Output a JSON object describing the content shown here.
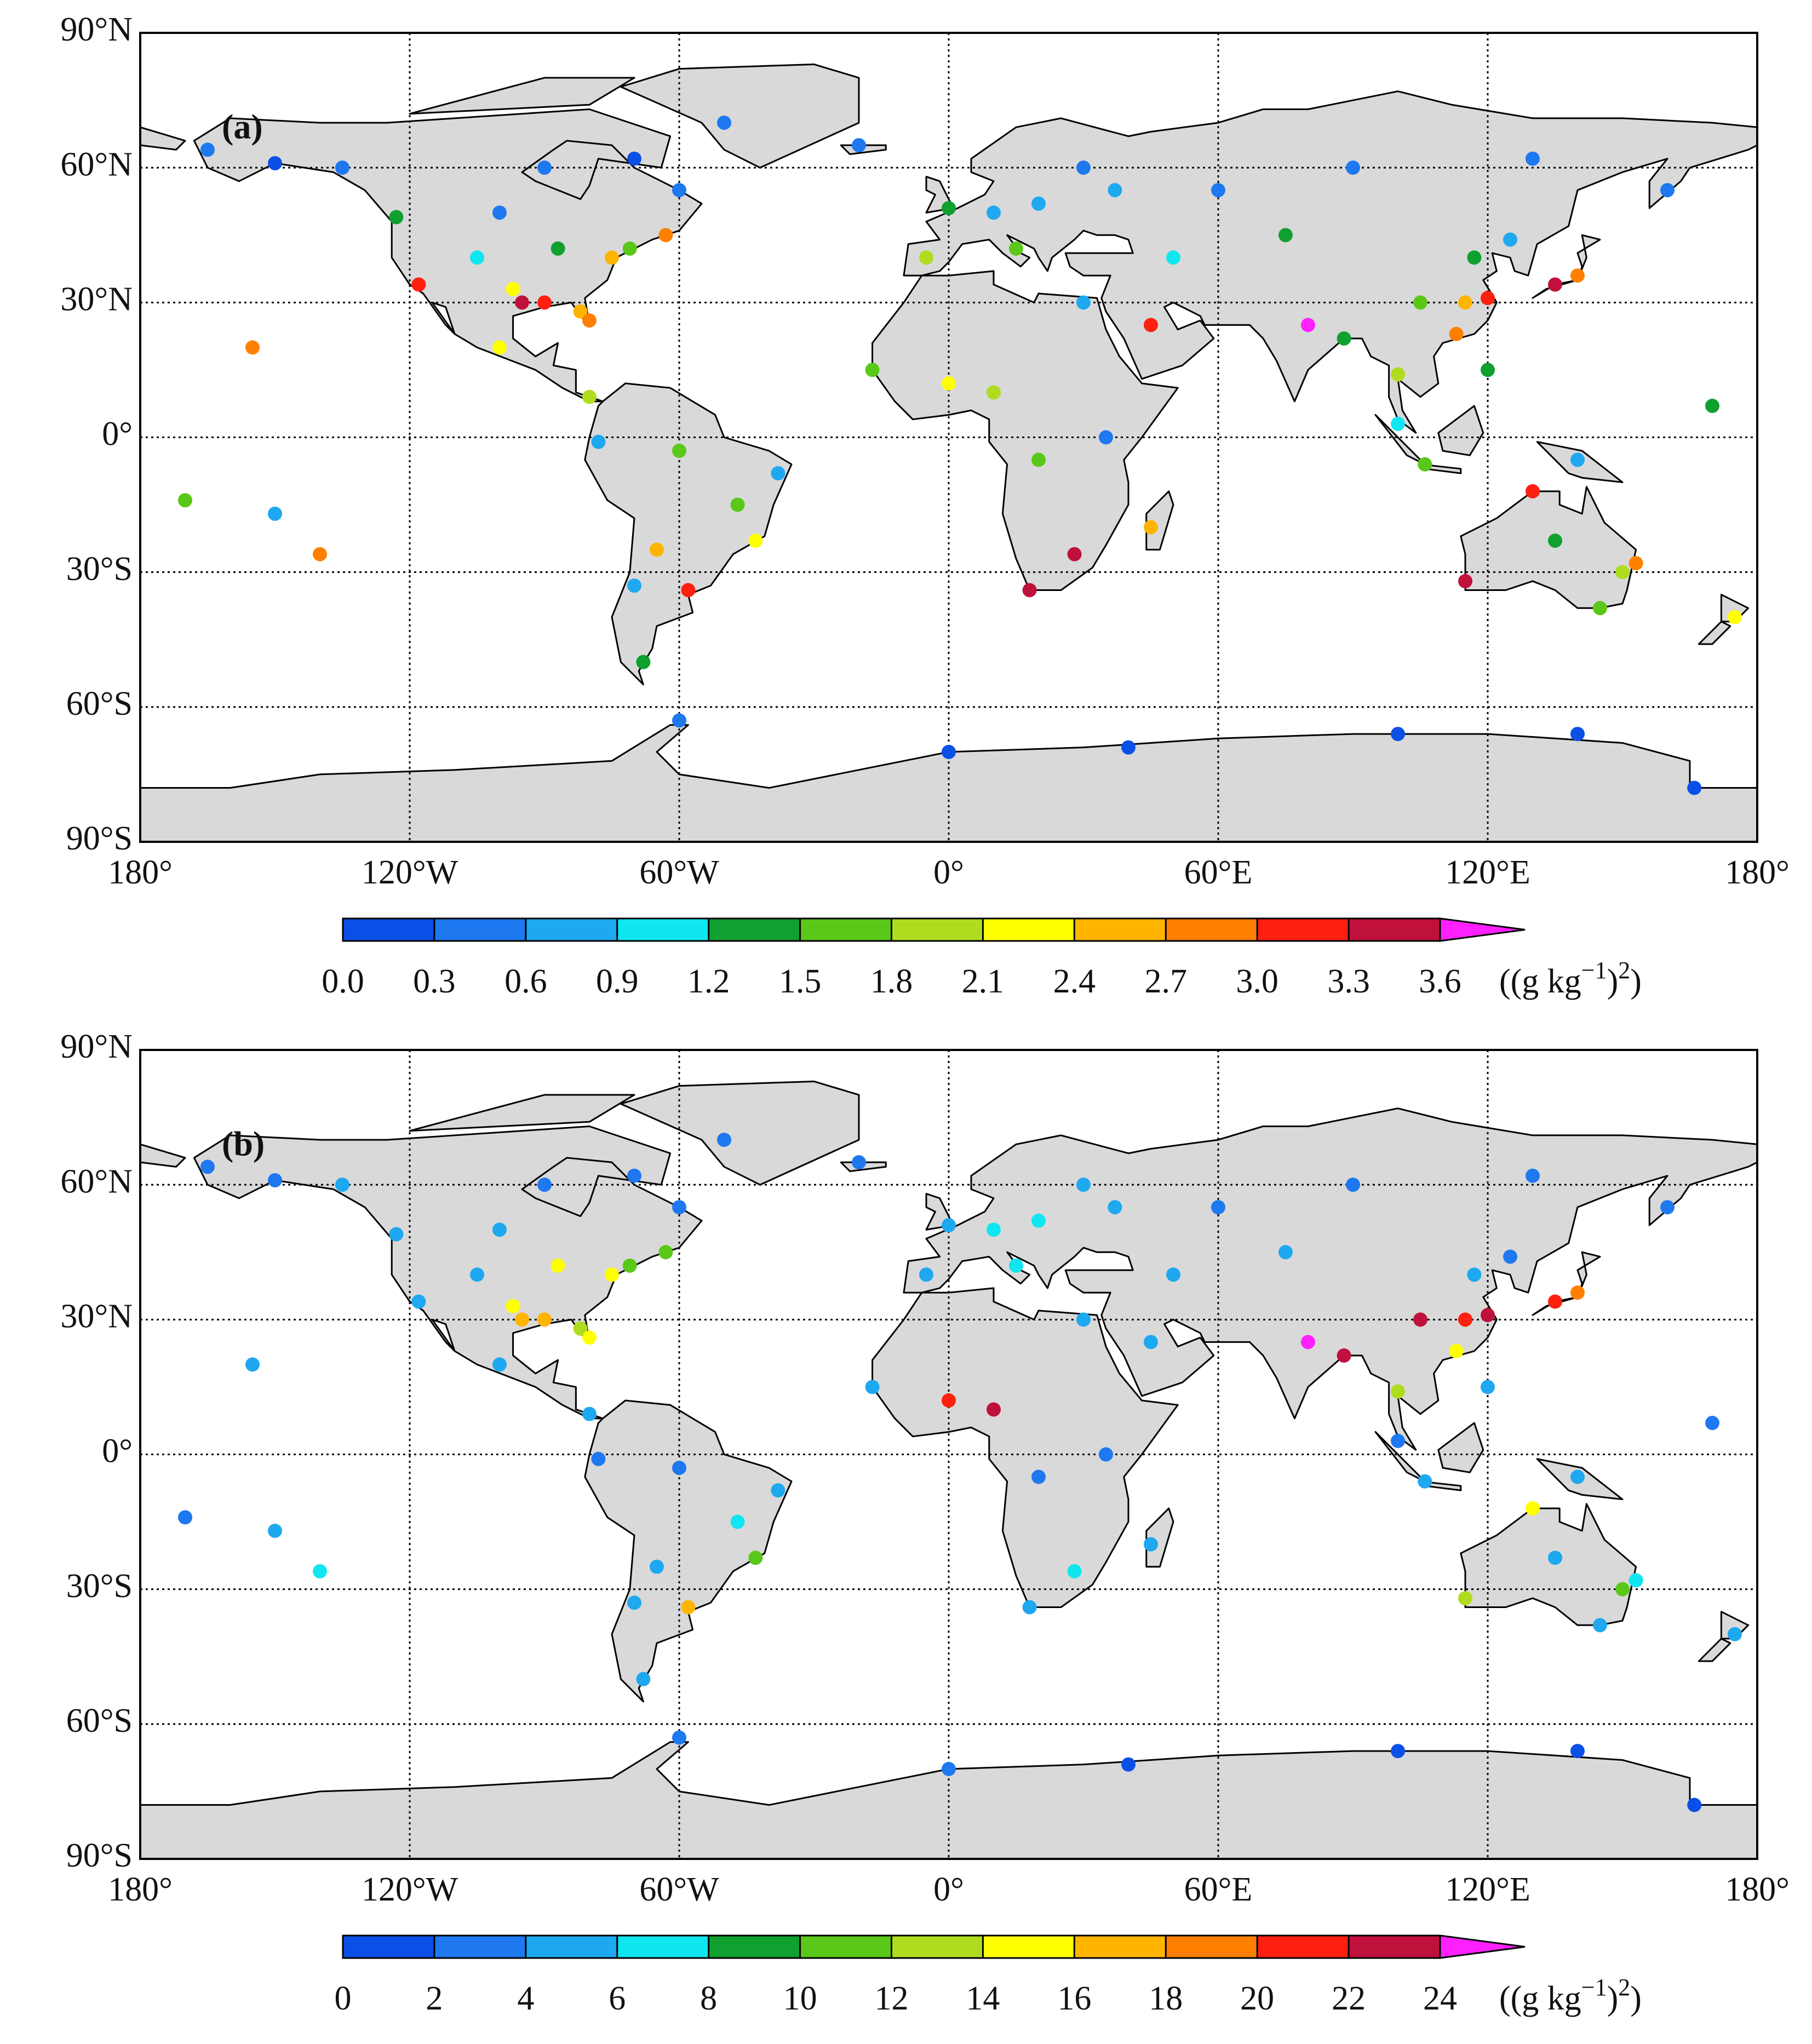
{
  "chart_data": [
    {
      "type": "map",
      "title": "(a)",
      "xlim": [
        -180,
        180
      ],
      "ylim": [
        -90,
        90
      ],
      "xticks": [
        {
          "value": -180,
          "label": "180°"
        },
        {
          "value": -120,
          "label": "120°W"
        },
        {
          "value": -60,
          "label": "60°W"
        },
        {
          "value": 0,
          "label": "0°"
        },
        {
          "value": 60,
          "label": "60°E"
        },
        {
          "value": 120,
          "label": "120°E"
        },
        {
          "value": 180,
          "label": "180°"
        }
      ],
      "yticks": [
        {
          "value": -90,
          "label": "90°S"
        },
        {
          "value": -60,
          "label": "60°S"
        },
        {
          "value": -30,
          "label": "30°S"
        },
        {
          "value": 0,
          "label": "0°"
        },
        {
          "value": 30,
          "label": "30°N"
        },
        {
          "value": 60,
          "label": "60°N"
        },
        {
          "value": 90,
          "label": "90°N"
        }
      ],
      "grid": true,
      "x": [
        -150,
        -165,
        -135,
        -123,
        -118,
        -105,
        -97,
        -95,
        -90,
        -82,
        -80,
        -87,
        -75,
        -71,
        -63,
        -100,
        -90,
        -70,
        -60,
        -100,
        -80,
        -50,
        -20,
        -78,
        -60,
        -47,
        -38,
        -43,
        -58,
        -70,
        -68,
        -65,
        0,
        10,
        20,
        30,
        -5,
        15,
        37,
        -17,
        0,
        10,
        30,
        35,
        20,
        28,
        18,
        45,
        45,
        50,
        60,
        75,
        80,
        88,
        90,
        105,
        115,
        120,
        113,
        117,
        125,
        130,
        140,
        135,
        100,
        106,
        120,
        160,
        140,
        100,
        115,
        130,
        145,
        150,
        135,
        153,
        175,
        -155,
        -150,
        -140,
        -170,
        170,
        -60,
        0,
        40,
        100,
        140,
        166
      ],
      "y": [
        61,
        64,
        60,
        49,
        34,
        40,
        33,
        30,
        30,
        28,
        26,
        42,
        40,
        42,
        45,
        50,
        60,
        62,
        55,
        20,
        9,
        70,
        65,
        -1,
        -3,
        -15,
        -8,
        -23,
        -34,
        -33,
        -50,
        -25,
        51,
        50,
        52,
        60,
        40,
        42,
        55,
        15,
        12,
        10,
        30,
        0,
        -5,
        -26,
        -34,
        -20,
        25,
        40,
        55,
        45,
        25,
        22,
        60,
        30,
        30,
        31,
        23,
        40,
        44,
        62,
        36,
        34,
        14,
        -6,
        15,
        55,
        -5,
        3,
        -32,
        -12,
        -38,
        -30,
        -23,
        -28,
        -40,
        20,
        -17,
        -26,
        -14,
        7,
        -63,
        -70,
        -69,
        -66,
        -66,
        -78
      ],
      "values": [
        0.2,
        0.3,
        0.4,
        1.4,
        3.1,
        1.0,
        2.2,
        3.3,
        3.2,
        2.5,
        2.8,
        1.3,
        2.5,
        1.6,
        2.9,
        0.5,
        0.3,
        0.2,
        0.5,
        2.2,
        2.0,
        0.3,
        0.3,
        0.8,
        1.5,
        1.6,
        0.6,
        2.3,
        3.2,
        0.8,
        1.4,
        2.4,
        1.3,
        0.8,
        0.6,
        0.4,
        1.8,
        1.5,
        0.8,
        1.5,
        2.3,
        2.0,
        0.8,
        0.5,
        1.5,
        3.3,
        3.5,
        2.6,
        3.0,
        1.0,
        0.5,
        1.3,
        4.0,
        1.3,
        0.4,
        1.7,
        2.5,
        3.2,
        2.7,
        1.2,
        0.6,
        0.3,
        2.8,
        3.3,
        1.8,
        1.5,
        1.2,
        0.4,
        0.8,
        0.9,
        3.4,
        3.0,
        1.5,
        1.8,
        1.2,
        2.7,
        2.2,
        2.7,
        0.7,
        2.8,
        1.6,
        1.4,
        0.3,
        0.2,
        0.1,
        0.1,
        0.1,
        0.2
      ],
      "colorbar": {
        "levels": [
          {
            "value": 0,
            "label": "0.0"
          },
          0.3,
          0.6,
          0.9,
          1.2,
          1.5,
          1.8,
          2.1,
          2.4,
          2.7,
          {
            "value": 3,
            "label": "3.0"
          },
          3.3,
          3.6
        ],
        "colors": [
          "#0a50e6",
          "#1e78f0",
          "#1ea8f0",
          "#10e6f0",
          "#10a030",
          "#5ac818",
          "#b0dc20",
          "#ffff00",
          "#ffb400",
          "#ff8000",
          "#ff2010",
          "#c0103c"
        ],
        "extend_color": "#ff20ff",
        "units": [
          "((g kg",
          "−1",
          ")",
          "2",
          ")"
        ]
      }
    },
    {
      "type": "map",
      "title": "(b)",
      "xlim": [
        -180,
        180
      ],
      "ylim": [
        -90,
        90
      ],
      "xticks": [
        {
          "value": -180,
          "label": "180°"
        },
        {
          "value": -120,
          "label": "120°W"
        },
        {
          "value": -60,
          "label": "60°W"
        },
        {
          "value": 0,
          "label": "0°"
        },
        {
          "value": 60,
          "label": "60°E"
        },
        {
          "value": 120,
          "label": "120°E"
        },
        {
          "value": 180,
          "label": "180°"
        }
      ],
      "yticks": [
        {
          "value": -90,
          "label": "90°S"
        },
        {
          "value": -60,
          "label": "60°S"
        },
        {
          "value": -30,
          "label": "30°S"
        },
        {
          "value": 0,
          "label": "0°"
        },
        {
          "value": 30,
          "label": "30°N"
        },
        {
          "value": 60,
          "label": "60°N"
        },
        {
          "value": 90,
          "label": "90°N"
        }
      ],
      "grid": true,
      "x": [
        -150,
        -165,
        -135,
        -123,
        -118,
        -105,
        -97,
        -95,
        -90,
        -82,
        -80,
        -87,
        -75,
        -71,
        -63,
        -100,
        -90,
        -70,
        -60,
        -100,
        -80,
        -50,
        -20,
        -78,
        -60,
        -47,
        -38,
        -43,
        -58,
        -70,
        -68,
        -65,
        0,
        10,
        20,
        30,
        -5,
        15,
        37,
        -17,
        0,
        10,
        30,
        35,
        20,
        28,
        18,
        45,
        45,
        50,
        60,
        75,
        80,
        88,
        90,
        105,
        115,
        120,
        113,
        117,
        125,
        130,
        140,
        135,
        100,
        106,
        120,
        160,
        140,
        100,
        115,
        130,
        145,
        150,
        135,
        153,
        175,
        -155,
        -150,
        -140,
        -170,
        170,
        -60,
        0,
        40,
        100,
        140,
        166
      ],
      "y": [
        61,
        64,
        60,
        49,
        34,
        40,
        33,
        30,
        30,
        28,
        26,
        42,
        40,
        42,
        45,
        50,
        60,
        62,
        55,
        20,
        9,
        70,
        65,
        -1,
        -3,
        -15,
        -8,
        -23,
        -34,
        -33,
        -50,
        -25,
        51,
        50,
        52,
        60,
        40,
        42,
        55,
        15,
        12,
        10,
        30,
        0,
        -5,
        -26,
        -34,
        -20,
        25,
        40,
        55,
        45,
        25,
        22,
        60,
        30,
        30,
        31,
        23,
        40,
        44,
        62,
        36,
        34,
        14,
        -6,
        15,
        55,
        -5,
        3,
        -32,
        -12,
        -38,
        -30,
        -23,
        -28,
        -40,
        20,
        -17,
        -26,
        -14,
        7,
        -63,
        -70,
        -69,
        -66,
        -66,
        -78
      ],
      "values": [
        3,
        3,
        4,
        4,
        5,
        5,
        15,
        17,
        16,
        12,
        14,
        14,
        14,
        11,
        10,
        5,
        2,
        2,
        3,
        4,
        4,
        2,
        2,
        3,
        3,
        6,
        4,
        10,
        16,
        5,
        4,
        5,
        5,
        6,
        6,
        4,
        5,
        6,
        5,
        4,
        20,
        22,
        4,
        3,
        3,
        6,
        5,
        5,
        4,
        4,
        3,
        4,
        25,
        22,
        3,
        22,
        20,
        22,
        14,
        4,
        3,
        2,
        18,
        21,
        12,
        4,
        5,
        3,
        4,
        2,
        12,
        15,
        5,
        10,
        4,
        6,
        5,
        4,
        4,
        6,
        2,
        3,
        2,
        2,
        1,
        1,
        1,
        1
      ],
      "colorbar": {
        "levels": [
          0,
          2,
          4,
          6,
          8,
          10,
          12,
          14,
          16,
          18,
          20,
          22,
          24
        ],
        "colors": [
          "#0a50e6",
          "#1e78f0",
          "#1ea8f0",
          "#10e6f0",
          "#10a030",
          "#5ac818",
          "#b0dc20",
          "#ffff00",
          "#ffb400",
          "#ff8000",
          "#ff2010",
          "#c0103c"
        ],
        "extend_color": "#ff20ff",
        "units": [
          "((g kg",
          "−1",
          ")",
          "2",
          ")"
        ]
      }
    }
  ]
}
